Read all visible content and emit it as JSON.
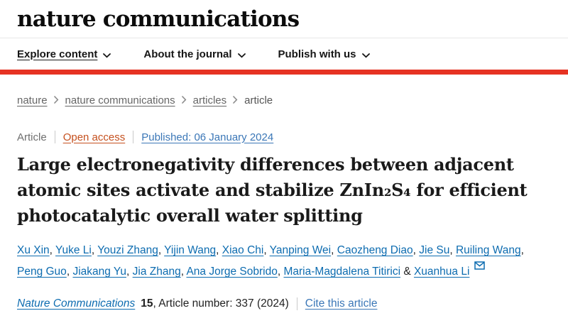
{
  "header": {
    "logo": "nature communications",
    "nav": [
      {
        "label": "Explore content"
      },
      {
        "label": "About the journal"
      },
      {
        "label": "Publish with us"
      }
    ]
  },
  "breadcrumb": {
    "items": [
      {
        "label": "nature"
      },
      {
        "label": "nature communications"
      },
      {
        "label": "articles"
      },
      {
        "label": "article"
      }
    ]
  },
  "meta": {
    "type": "Article",
    "access_label": "Open access",
    "published": "Published: 06 January 2024"
  },
  "title": {
    "full": "Large electronegativity differences between adjacent atomic sites activate and stabilize ZnIn₂S₄ for efficient photocatalytic overall water splitting",
    "lines": [
      "Large electronegativity differences between adjacent",
      "atomic sites activate and stabilize ZnIn₂S₄ for efficient",
      "photocatalytic overall water splitting"
    ]
  },
  "authors": {
    "list": [
      "Xu Xin",
      "Yuke Li",
      "Youzi Zhang",
      "Yijin Wang",
      "Xiao Chi",
      "Yanping Wei",
      "Caozheng Diao",
      "Jie Su",
      "Ruiling Wang",
      "Peng Guo",
      "Jiakang Yu",
      "Jia Zhang",
      "Ana Jorge Sobrido",
      "Maria-Magdalena Titirici",
      "Xuanhua Li"
    ],
    "separator": ", ",
    "last_separator": " & "
  },
  "citation": {
    "journal": "Nature Communications",
    "volume": "15",
    "article_info": ", Article number: 337 (2024)",
    "cite_label": "Cite this article"
  },
  "colors": {
    "accent_red": "#e63323",
    "link_blue": "#0d6cb0",
    "published_blue": "#3b77b7",
    "open_access_orange": "#c5501e"
  }
}
